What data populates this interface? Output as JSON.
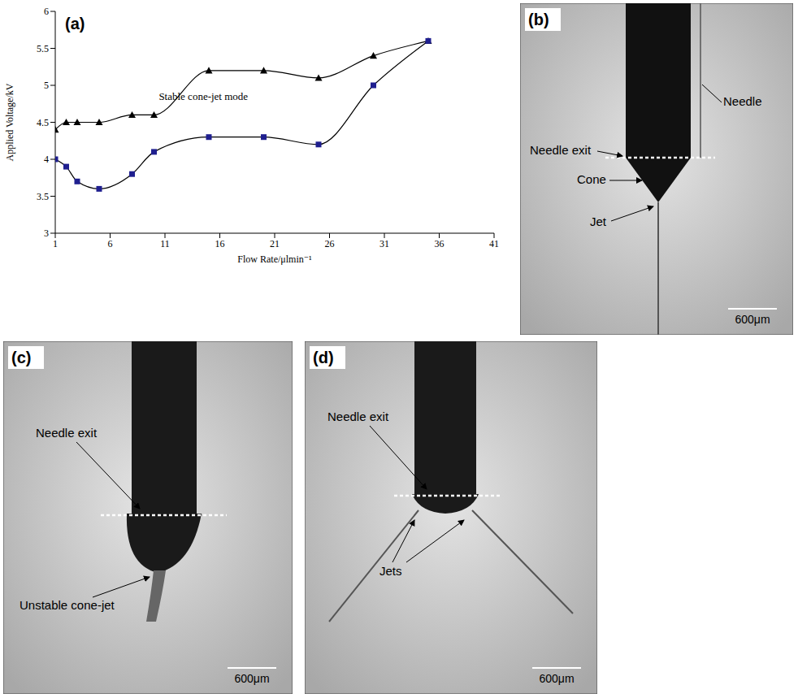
{
  "chart_data": {
    "type": "line",
    "x_label": "Flow Rate/μlmin⁻¹",
    "y_label": "Applied Voltage/kV",
    "x": [
      1,
      2,
      3,
      5,
      8,
      10,
      15,
      20,
      25,
      30,
      35
    ],
    "series": [
      {
        "color": "#000000",
        "marker": "triangle",
        "values": [
          4.4,
          4.5,
          4.5,
          4.5,
          4.6,
          4.6,
          5.2,
          5.2,
          5.1,
          5.4,
          5.6
        ]
      },
      {
        "color": "#1f1f8f",
        "marker": "square",
        "values": [
          4.0,
          3.9,
          3.7,
          3.6,
          3.8,
          4.1,
          4.3,
          4.3,
          4.2,
          5.0,
          5.6
        ]
      }
    ],
    "xlim": [
      1,
      41
    ],
    "xticks": [
      1,
      6,
      11,
      16,
      21,
      26,
      31,
      36,
      41
    ],
    "ylim": [
      3,
      6
    ],
    "yticks": [
      3,
      3.5,
      4,
      4.5,
      5,
      5.5,
      6
    ],
    "grid": false,
    "line_style": "smooth",
    "annotations": [
      {
        "text": "(a)"
      },
      {
        "text": "Stable cone-jet mode",
        "x": 14.5,
        "y": 4.85
      }
    ]
  },
  "panels": {
    "b": {
      "label": "(b)",
      "needle_exit": "Needle exit",
      "needle": "Needle",
      "cone": "Cone",
      "jet": "Jet",
      "scale_bar": "600μm"
    },
    "c": {
      "label": "(c)",
      "needle_exit": "Needle exit",
      "unstable": "Unstable cone-jet",
      "scale_bar": "600μm"
    },
    "d": {
      "label": "(d)",
      "needle_exit": "Needle exit",
      "jets": "Jets",
      "scale_bar": "600μm"
    }
  }
}
